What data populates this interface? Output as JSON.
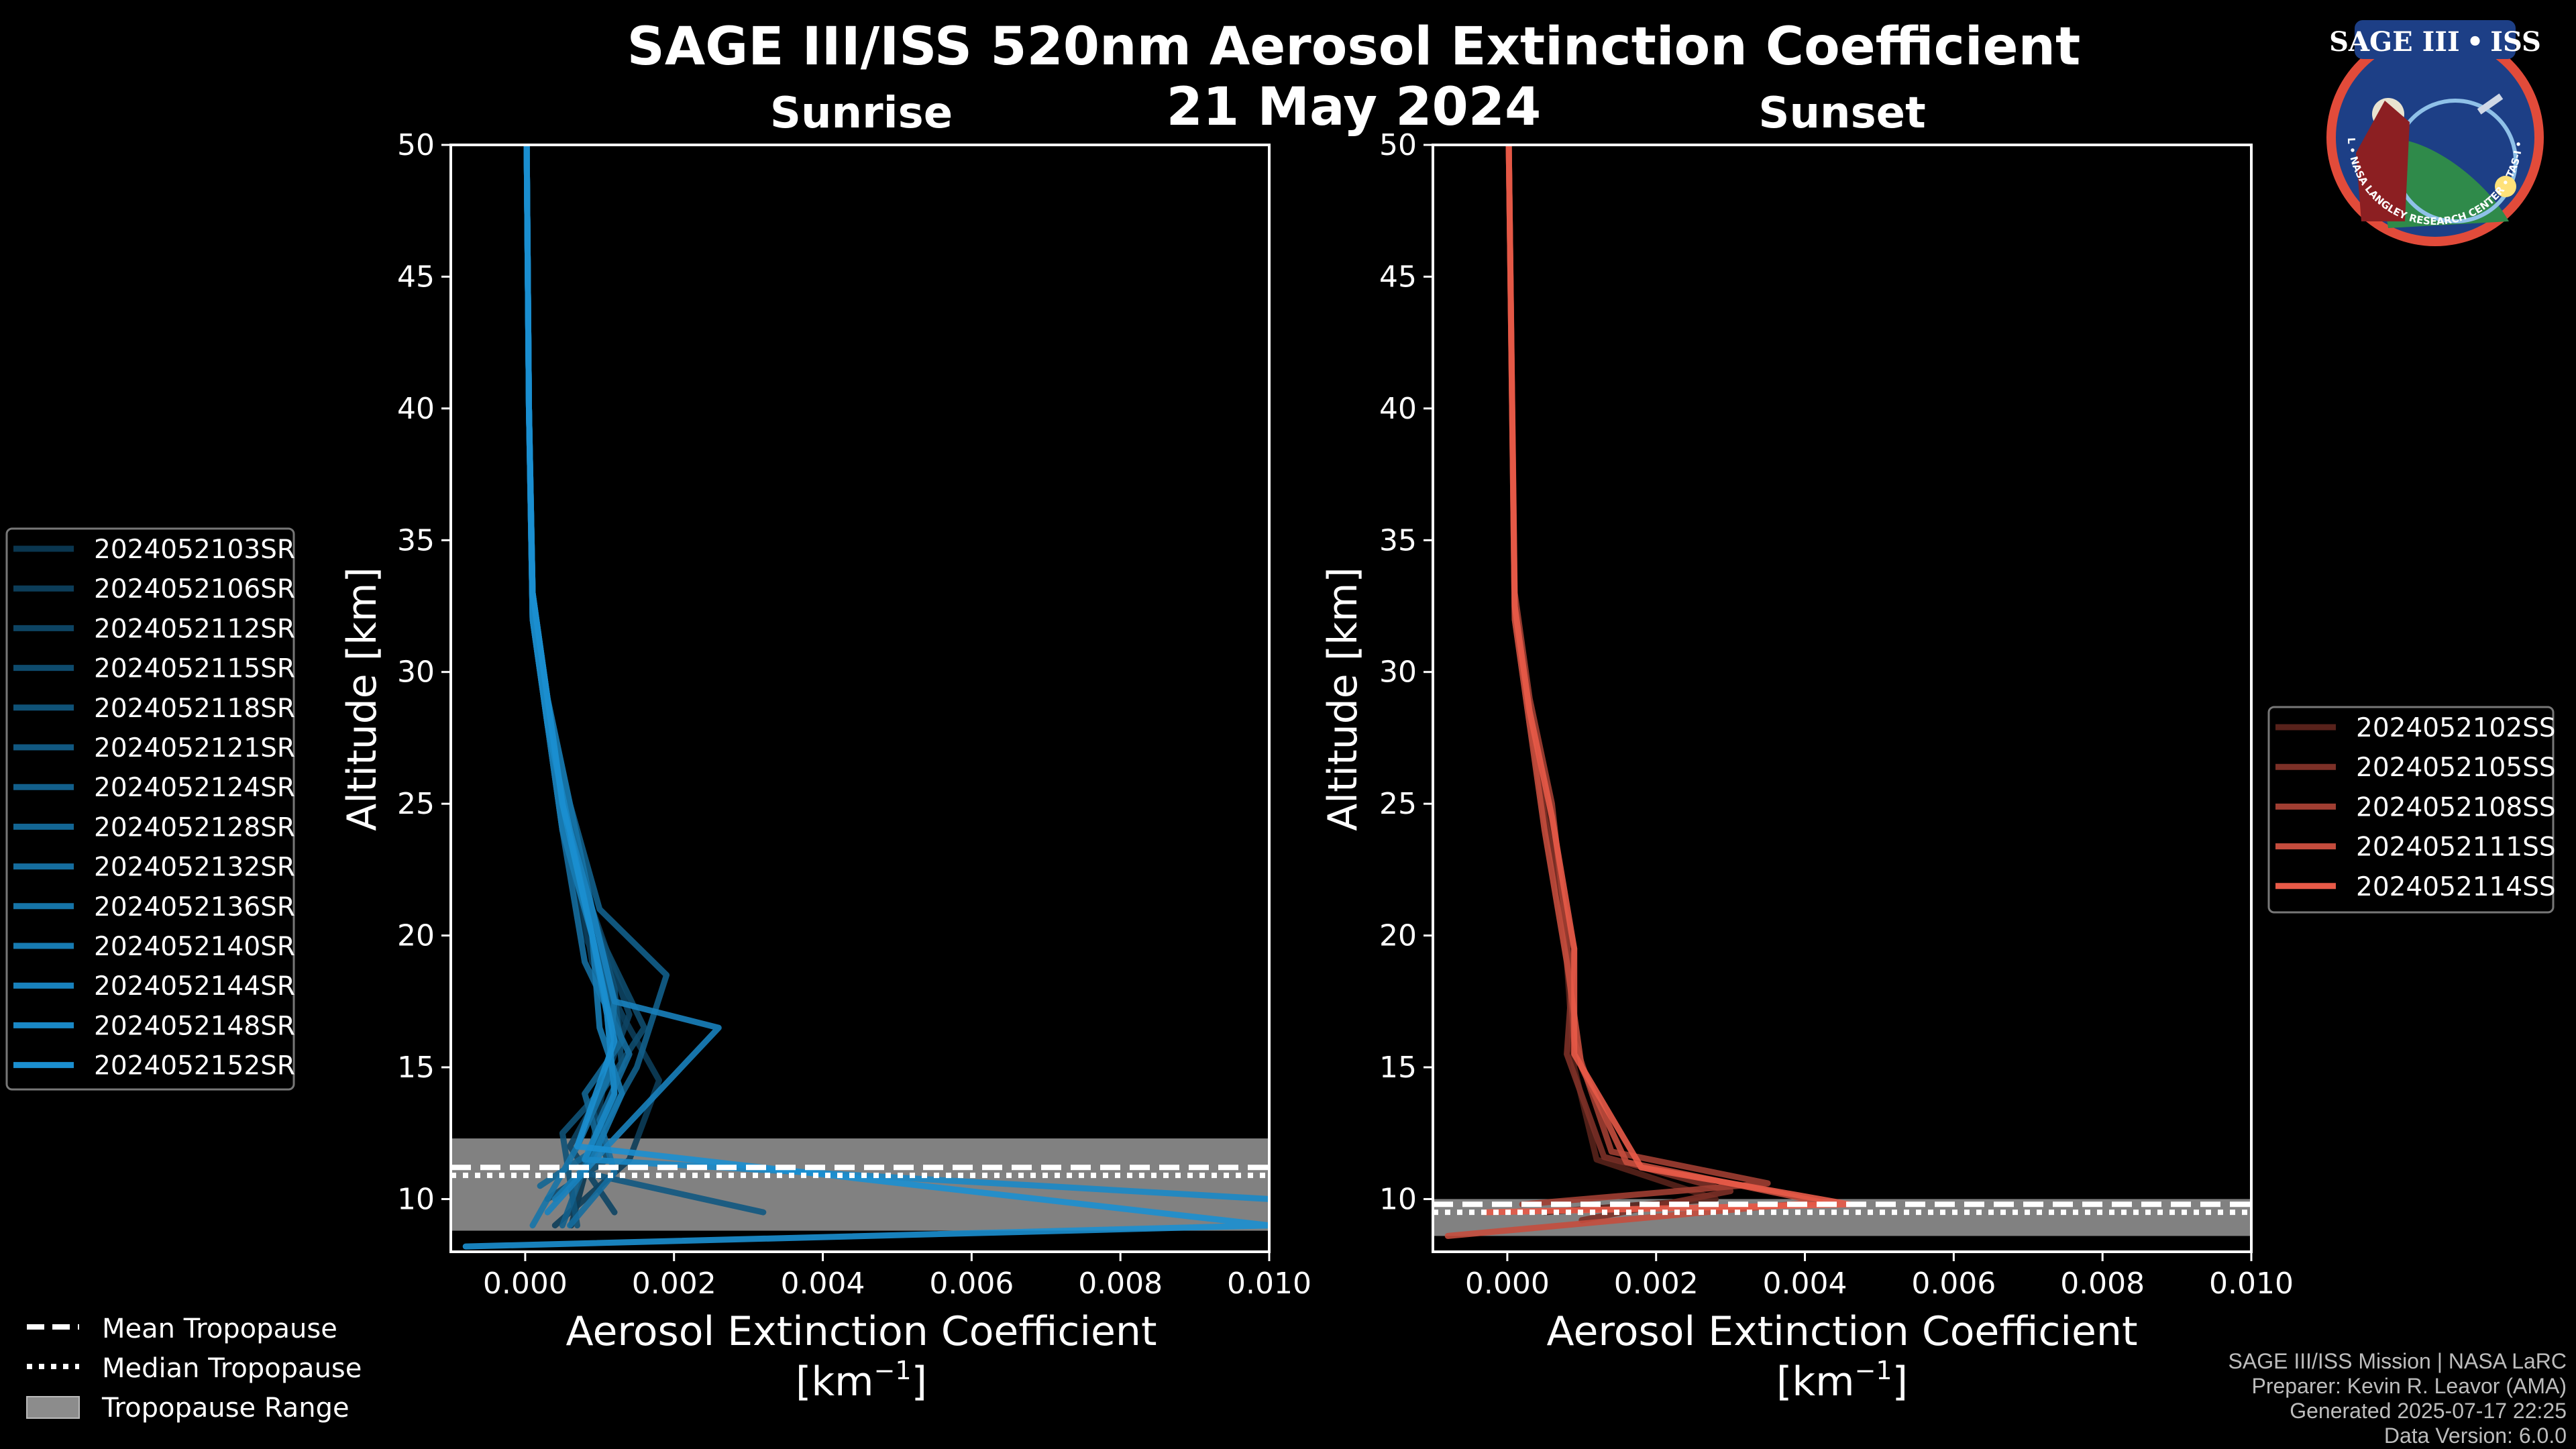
{
  "title": "SAGE III/ISS 520nm Aerosol Extinction Coefficient",
  "date": "21 May 2024",
  "logo": {
    "line1": "SAGE III",
    "dot": "•",
    "line2": "ISS",
    "ring_text": "BALL • NASA LANGLEY RESEARCH CENTER • TAS-I • ESA"
  },
  "colors": {
    "sunrise": "#1b8fd0",
    "sunset": "#e85a48",
    "trop_band": "#8c8c8c",
    "axis": "#ffffff",
    "background": "#000000"
  },
  "legend_tropopause": {
    "mean": "Mean Tropopause",
    "median": "Median Tropopause",
    "range": "Tropopause Range"
  },
  "footer": {
    "line1": "SAGE III/ISS Mission | NASA LaRC",
    "line2": "Preparer: Kevin R. Leavor (AMA)",
    "line3": "Generated 2025-07-17 22:25",
    "line4": "Data Version: 6.0.0"
  },
  "chart_data": [
    {
      "type": "line",
      "subtitle": "Sunrise",
      "xlabel": "Aerosol Extinction Coefficient",
      "xunit": "[km",
      "xunit_exp": "−1",
      "xunit_close": "]",
      "ylabel": "Altitude [km]",
      "xlim": [
        -0.001,
        0.01
      ],
      "ylim": [
        8,
        50
      ],
      "xticks": [
        0.0,
        0.002,
        0.004,
        0.006,
        0.008,
        0.01
      ],
      "xtick_labels": [
        "0.000",
        "0.002",
        "0.004",
        "0.006",
        "0.008",
        "0.010"
      ],
      "yticks": [
        10,
        15,
        20,
        25,
        30,
        35,
        40,
        45,
        50
      ],
      "ytick_labels": [
        "10",
        "15",
        "20",
        "25",
        "30",
        "35",
        "40",
        "45",
        "50"
      ],
      "tropopause": {
        "mean": 11.2,
        "median": 10.9,
        "range": [
          8.8,
          12.3
        ]
      },
      "series": [
        {
          "name": "2024052103SR",
          "x": [
            0.00062,
            0.0009,
            0.0011,
            0.0013,
            0.0008,
            0.0005,
            0.0003,
            0.0001,
            5e-05,
            2e-05
          ],
          "y": [
            9,
            12,
            15,
            17,
            20,
            25,
            28,
            32,
            40,
            50
          ]
        },
        {
          "name": "2024052106SR",
          "x": [
            0.0004,
            0.0014,
            0.0018,
            0.0015,
            0.0009,
            0.0006,
            0.0003,
            0.0001,
            5e-05,
            2e-05
          ],
          "y": [
            9,
            11.5,
            14.5,
            16,
            19,
            24,
            28,
            32,
            40,
            50
          ]
        },
        {
          "name": "2024052112SR",
          "x": [
            0.0012,
            0.0006,
            0.001,
            0.0014,
            0.0009,
            0.0005,
            0.0003,
            0.0001,
            5e-05,
            2e-05
          ],
          "y": [
            9.5,
            12,
            14,
            17,
            21,
            25,
            29,
            33,
            40,
            50
          ]
        },
        {
          "name": "2024052115SR",
          "x": [
            0.0003,
            0.0011,
            0.0009,
            0.0016,
            0.001,
            0.0006,
            0.0003,
            0.0001,
            5e-05,
            2e-05
          ],
          "y": [
            10,
            11.5,
            13.5,
            16.5,
            20,
            24,
            28,
            32,
            40,
            50
          ]
        },
        {
          "name": "2024052118SR",
          "x": [
            0.0007,
            0.0005,
            0.0013,
            0.0012,
            0.0009,
            0.0005,
            0.0003,
            0.0001,
            5e-05,
            2e-05
          ],
          "y": [
            9,
            12.5,
            15,
            18,
            21,
            25,
            29,
            33,
            40,
            50
          ]
        },
        {
          "name": "2024052121SR",
          "x": [
            0.0032,
            0.0008,
            0.0012,
            0.0011,
            0.0009,
            0.0005,
            0.0003,
            0.0001,
            5e-05,
            2e-05
          ],
          "y": [
            9.5,
            11,
            14,
            17,
            20,
            24,
            28,
            32,
            40,
            50
          ]
        },
        {
          "name": "2024052124SR",
          "x": [
            0.0005,
            0.0009,
            0.0015,
            0.0019,
            0.001,
            0.0006,
            0.0003,
            0.0001,
            5e-05,
            2e-05
          ],
          "y": [
            9,
            12,
            15,
            18.5,
            21,
            25,
            29,
            33,
            40,
            50
          ]
        },
        {
          "name": "2024052128SR",
          "x": [
            0.0002,
            0.001,
            0.0008,
            0.0013,
            0.0009,
            0.0005,
            0.0003,
            0.0001,
            5e-05,
            2e-05
          ],
          "y": [
            10.5,
            12,
            14,
            16,
            20,
            24,
            28,
            32,
            40,
            50
          ]
        },
        {
          "name": "2024052132SR",
          "x": [
            0.0006,
            0.0012,
            0.001,
            0.0014,
            0.0008,
            0.0005,
            0.0003,
            0.0001,
            5e-05,
            2e-05
          ],
          "y": [
            9,
            11,
            13,
            15.5,
            19,
            24,
            28,
            32,
            40,
            50
          ]
        },
        {
          "name": "2024052136SR",
          "x": [
            0.0001,
            0.0007,
            0.0011,
            0.0012,
            0.0009,
            0.0006,
            0.0003,
            0.0001,
            5e-05,
            2e-05
          ],
          "y": [
            9,
            12,
            14.5,
            17.5,
            21,
            25,
            29,
            33,
            40,
            50
          ]
        },
        {
          "name": "2024052140SR",
          "x": [
            0.0004,
            0.0009,
            0.0013,
            0.001,
            0.0009,
            0.0005,
            0.0003,
            0.0001,
            5e-05,
            2e-05
          ],
          "y": [
            10,
            11.5,
            14,
            16.5,
            20,
            24,
            28,
            32,
            40,
            50
          ]
        },
        {
          "name": "2024052144SR",
          "x": [
            0.0003,
            0.0011,
            0.0026,
            0.0012,
            0.0009,
            0.0005,
            0.0003,
            0.0001,
            5e-05,
            2e-05
          ],
          "y": [
            9.5,
            12,
            16.5,
            17.5,
            21,
            25,
            29,
            33,
            40,
            50
          ]
        },
        {
          "name": "2024052148SR",
          "x": [
            0.01,
            0.0008,
            0.0012,
            0.0011,
            0.0009,
            0.0006,
            0.0003,
            0.0001,
            5e-05,
            2e-05
          ],
          "y": [
            10,
            11.5,
            14,
            17,
            20,
            24,
            28,
            32,
            40,
            50
          ]
        },
        {
          "name": "2024052152SR",
          "x": [
            -0.0008,
            0.01,
            0.0007,
            0.0012,
            0.0009,
            0.0005,
            0.0003,
            0.0001,
            5e-05,
            2e-05
          ],
          "y": [
            8.2,
            9,
            12,
            16,
            20,
            25,
            29,
            33,
            40,
            50
          ]
        }
      ]
    },
    {
      "type": "line",
      "subtitle": "Sunset",
      "xlabel": "Aerosol Extinction Coefficient",
      "xunit": "[km",
      "xunit_exp": "−1",
      "xunit_close": "]",
      "ylabel": "Altitude [km]",
      "xlim": [
        -0.001,
        0.01
      ],
      "ylim": [
        8,
        50
      ],
      "xticks": [
        0.0,
        0.002,
        0.004,
        0.006,
        0.008,
        0.01
      ],
      "xtick_labels": [
        "0.000",
        "0.002",
        "0.004",
        "0.006",
        "0.008",
        "0.010"
      ],
      "yticks": [
        10,
        15,
        20,
        25,
        30,
        35,
        40,
        45,
        50
      ],
      "ytick_labels": [
        "10",
        "15",
        "20",
        "25",
        "30",
        "35",
        "40",
        "45",
        "50"
      ],
      "tropopause": {
        "mean": 9.8,
        "median": 9.5,
        "range": [
          8.6,
          10.0
        ]
      },
      "series": [
        {
          "name": "2024052102SS",
          "x": [
            0.0005,
            0.0028,
            0.0012,
            0.0009,
            0.0008,
            0.0006,
            0.0003,
            0.0001,
            2e-05
          ],
          "y": [
            9.5,
            10,
            11.5,
            15,
            19,
            24,
            28,
            32,
            50
          ]
        },
        {
          "name": "2024052105SS",
          "x": [
            0.001,
            0.003,
            0.0013,
            0.0008,
            0.0009,
            0.0005,
            0.0003,
            0.0001,
            2e-05
          ],
          "y": [
            9.2,
            10.3,
            11.6,
            15.5,
            19.5,
            24.5,
            28.5,
            32,
            50
          ]
        },
        {
          "name": "2024052108SS",
          "x": [
            0.0002,
            0.0035,
            0.0014,
            0.0009,
            0.0008,
            0.0006,
            0.0003,
            0.0001,
            2e-05
          ],
          "y": [
            9.8,
            10.6,
            11.8,
            16,
            20,
            25,
            29,
            33,
            50
          ]
        },
        {
          "name": "2024052111SS",
          "x": [
            -0.0008,
            0.0042,
            0.0016,
            0.001,
            0.0008,
            0.0005,
            0.0003,
            0.0001,
            2e-05
          ],
          "y": [
            8.6,
            9.9,
            11.4,
            15,
            19,
            24,
            28,
            32,
            50
          ]
        },
        {
          "name": "2024052114SS",
          "x": [
            -0.0003,
            0.0046,
            0.0018,
            0.0009,
            0.0009,
            0.0006,
            0.0003,
            0.0001,
            2e-05
          ],
          "y": [
            9.5,
            9.8,
            11.2,
            15.5,
            19.5,
            24.5,
            28.5,
            32.5,
            50
          ]
        }
      ]
    }
  ]
}
